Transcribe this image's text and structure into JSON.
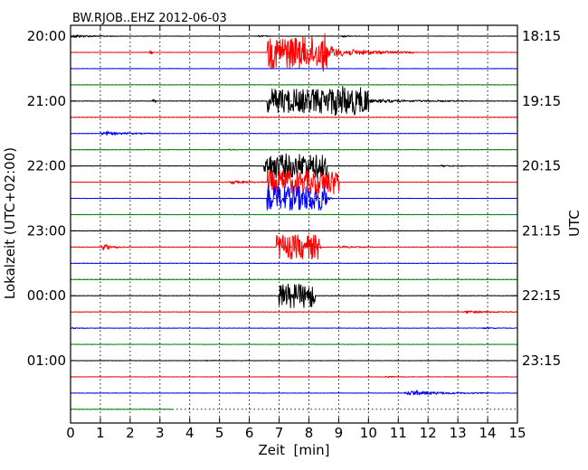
{
  "chart_data": {
    "type": "line",
    "title": "BW.RJOB..EHZ 2012-06-03",
    "xlabel": "Zeit  [min]",
    "ylabel_left": "Lokalzeit (UTC+02:00)",
    "ylabel_right": "UTC",
    "xlim": [
      0,
      15
    ],
    "x_ticks": [
      "0",
      "1",
      "2",
      "3",
      "4",
      "5",
      "6",
      "7",
      "8",
      "9",
      "10",
      "11",
      "12",
      "13",
      "14",
      "15"
    ],
    "left_ticks": [
      "20:00",
      "21:00",
      "22:00",
      "23:00",
      "00:00",
      "01:00"
    ],
    "right_ticks": [
      "18:15",
      "19:15",
      "20:15",
      "21:15",
      "22:15",
      "23:15"
    ],
    "grid": true,
    "trace_interval_min": 15,
    "trace_colors": [
      "#000000",
      "#ff0000",
      "#0000ff",
      "#008000"
    ],
    "last_trace_end_min": 3.45,
    "events": [
      {
        "trace": 0,
        "start": 0.0,
        "end": 1.6,
        "amplitude": 0.85
      },
      {
        "trace": 0,
        "start": 6.3,
        "end": 6.7,
        "amplitude": 0.6
      },
      {
        "trace": 0,
        "start": 9.1,
        "end": 9.7,
        "amplitude": 0.5
      },
      {
        "trace": 1,
        "start": 2.65,
        "end": 2.75,
        "amplitude": 1.0
      },
      {
        "trace": 1,
        "start": 6.6,
        "end": 8.6,
        "amplitude": 8.0
      },
      {
        "trace": 1,
        "start": 8.4,
        "end": 11.5,
        "amplitude": 3.0
      },
      {
        "trace": 4,
        "start": 2.75,
        "end": 2.85,
        "amplitude": 0.8
      },
      {
        "trace": 4,
        "start": 6.6,
        "end": 10.0,
        "amplitude": 6.0
      },
      {
        "trace": 4,
        "start": 8.5,
        "end": 13.5,
        "amplitude": 1.4
      },
      {
        "trace": 4,
        "start": 10.4,
        "end": 10.8,
        "amplitude": 0.6
      },
      {
        "trace": 6,
        "start": 1.0,
        "end": 3.0,
        "amplitude": 1.0
      },
      {
        "trace": 7,
        "start": 5.3,
        "end": 6.0,
        "amplitude": 0.3
      },
      {
        "trace": 8,
        "start": 6.5,
        "end": 8.6,
        "amplitude": 6.0
      },
      {
        "trace": 8,
        "start": 12.4,
        "end": 13.4,
        "amplitude": 0.4
      },
      {
        "trace": 9,
        "start": 5.3,
        "end": 6.8,
        "amplitude": 0.9
      },
      {
        "trace": 9,
        "start": 6.6,
        "end": 9.0,
        "amplitude": 6.0
      },
      {
        "trace": 10,
        "start": 8.6,
        "end": 8.8,
        "amplitude": 0.6
      },
      {
        "trace": 10,
        "start": 6.6,
        "end": 8.6,
        "amplitude": 6.0
      },
      {
        "trace": 13,
        "start": 1.05,
        "end": 1.8,
        "amplitude": 1.8
      },
      {
        "trace": 13,
        "start": 9.0,
        "end": 10.6,
        "amplitude": 0.5
      },
      {
        "trace": 13,
        "start": 6.9,
        "end": 8.4,
        "amplitude": 6.0
      },
      {
        "trace": 16,
        "start": 7.0,
        "end": 8.2,
        "amplitude": 6.0
      },
      {
        "trace": 17,
        "start": 13.2,
        "end": 15.0,
        "amplitude": 0.8
      },
      {
        "trace": 18,
        "start": 0.0,
        "end": 0.6,
        "amplitude": 0.4
      },
      {
        "trace": 18,
        "start": 13.8,
        "end": 15.0,
        "amplitude": 0.3
      },
      {
        "trace": 20,
        "start": 4.4,
        "end": 5.6,
        "amplitude": 0.15
      },
      {
        "trace": 21,
        "start": 10.5,
        "end": 11.5,
        "amplitude": 0.3
      },
      {
        "trace": 22,
        "start": 11.2,
        "end": 14.0,
        "amplitude": 1.3
      }
    ]
  }
}
